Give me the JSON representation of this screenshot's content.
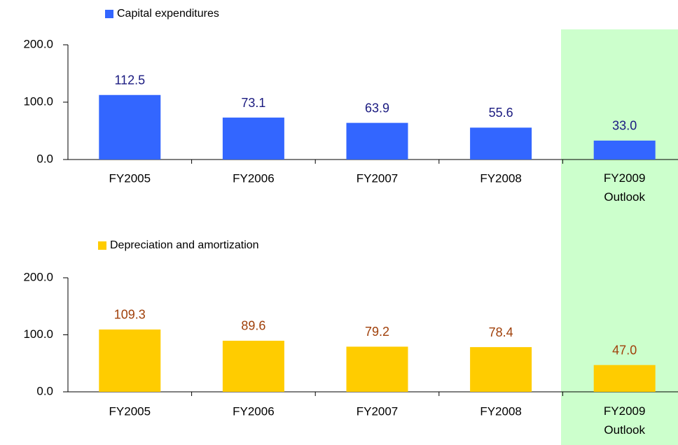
{
  "chart_data": [
    {
      "type": "bar",
      "categories": [
        "FY2005",
        "FY2006",
        "FY2007",
        "FY2008",
        "FY2009 Outlook"
      ],
      "series": [
        {
          "name": "Capital expenditures",
          "color": "#3366ff",
          "label_color": "#1a1a80",
          "values": [
            112.5,
            73.1,
            63.9,
            55.6,
            33.0
          ],
          "value_labels": [
            "112.5",
            "73.1",
            "63.9",
            "55.6",
            "33.0"
          ]
        }
      ],
      "ylim": [
        0,
        200
      ],
      "yticks": [
        {
          "value": 0,
          "label": "0.0"
        },
        {
          "value": 100,
          "label": "100.0"
        },
        {
          "value": 200,
          "label": "200.0"
        }
      ]
    },
    {
      "type": "bar",
      "categories": [
        "FY2005",
        "FY2006",
        "FY2007",
        "FY2008",
        "FY2009 Outlook"
      ],
      "series": [
        {
          "name": "Depreciation and amortization",
          "color": "#ffcc00",
          "label_color": "#a0400a",
          "values": [
            109.3,
            89.6,
            79.2,
            78.4,
            47.0
          ],
          "value_labels": [
            "109.3",
            "89.6",
            "79.2",
            "78.4",
            "47.0"
          ]
        }
      ],
      "ylim": [
        0,
        200
      ],
      "yticks": [
        {
          "value": 0,
          "label": "0.0"
        },
        {
          "value": 100,
          "label": "100.0"
        },
        {
          "value": 200,
          "label": "200.0"
        }
      ]
    }
  ]
}
